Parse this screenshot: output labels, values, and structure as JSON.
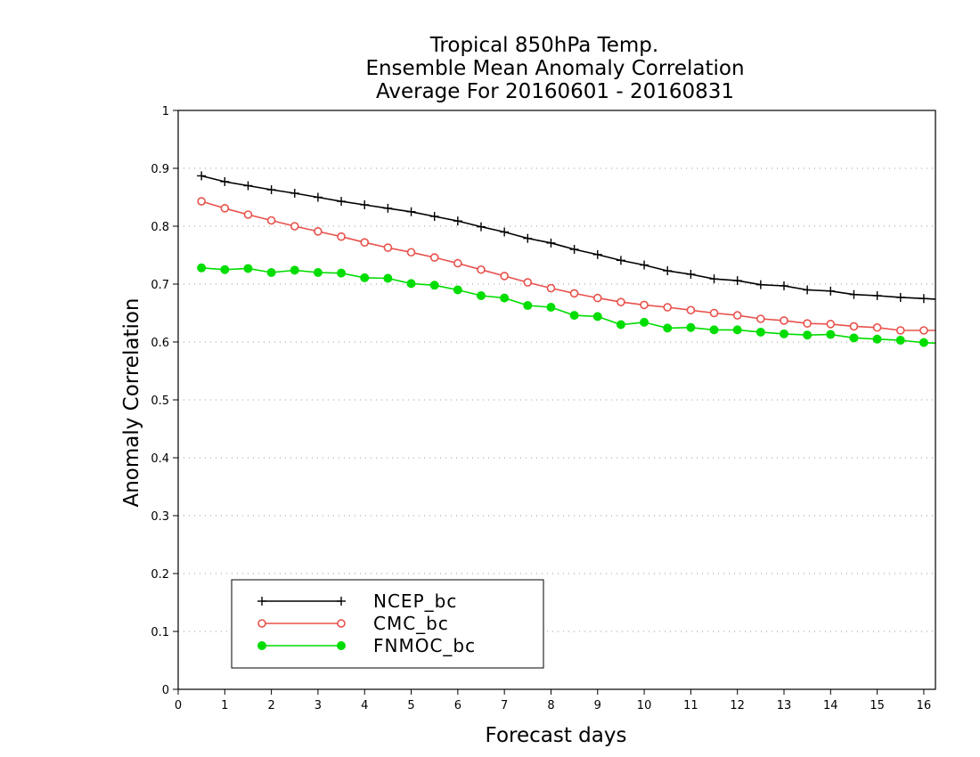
{
  "chart_data": {
    "type": "line",
    "title": [
      "Tropical 850hPa Temp.",
      "Ensemble Mean Anomaly Correlation",
      "Average For 20160601 - 20160831"
    ],
    "xlabel": "Forecast days",
    "ylabel": "Anomaly Correlation",
    "xlim": [
      0,
      16.25
    ],
    "ylim": [
      0,
      1
    ],
    "xticks": [
      "0",
      "1",
      "2",
      "3",
      "4",
      "5",
      "6",
      "7",
      "8",
      "9",
      "10",
      "11",
      "12",
      "13",
      "14",
      "15",
      "16"
    ],
    "yticks": [
      "0",
      "0.1",
      "0.2",
      "0.3",
      "0.4",
      "0.5",
      "0.6",
      "0.7",
      "0.8",
      "0.9",
      "1"
    ],
    "grid": "horizontal-dotted",
    "legend_position": "bottom-left",
    "x": [
      0.5,
      1,
      1.5,
      2,
      2.5,
      3,
      3.5,
      4,
      4.5,
      5,
      5.5,
      6,
      6.5,
      7,
      7.5,
      8,
      8.5,
      9,
      9.5,
      10,
      10.5,
      11,
      11.5,
      12,
      12.5,
      13,
      13.5,
      14,
      14.5,
      15,
      15.5,
      16,
      16.25
    ],
    "series": [
      {
        "name": "NCEP_bc",
        "color": "#000000",
        "marker": "plus",
        "values": [
          0.887,
          0.877,
          0.87,
          0.863,
          0.857,
          0.85,
          0.843,
          0.837,
          0.831,
          0.825,
          0.817,
          0.809,
          0.799,
          0.79,
          0.779,
          0.771,
          0.76,
          0.751,
          0.741,
          0.733,
          0.723,
          0.717,
          0.709,
          0.706,
          0.699,
          0.697,
          0.69,
          0.688,
          0.682,
          0.68,
          0.677,
          0.675,
          0.674
        ]
      },
      {
        "name": "CMC_bc",
        "color": "#e8504a",
        "marker": "open-circle",
        "values": [
          0.843,
          0.831,
          0.82,
          0.81,
          0.8,
          0.791,
          0.782,
          0.772,
          0.763,
          0.755,
          0.746,
          0.736,
          0.725,
          0.714,
          0.703,
          0.693,
          0.684,
          0.676,
          0.669,
          0.664,
          0.66,
          0.655,
          0.65,
          0.646,
          0.64,
          0.637,
          0.632,
          0.631,
          0.627,
          0.625,
          0.62,
          0.62,
          0.62
        ]
      },
      {
        "name": "FNMOC_bc",
        "color": "#00dd00",
        "marker": "filled-circle",
        "values": [
          0.728,
          0.725,
          0.727,
          0.72,
          0.724,
          0.72,
          0.719,
          0.711,
          0.71,
          0.701,
          0.698,
          0.69,
          0.68,
          0.676,
          0.663,
          0.66,
          0.646,
          0.644,
          0.63,
          0.634,
          0.624,
          0.625,
          0.621,
          0.621,
          0.617,
          0.614,
          0.612,
          0.613,
          0.607,
          0.605,
          0.603,
          0.599,
          0.598
        ]
      }
    ]
  }
}
